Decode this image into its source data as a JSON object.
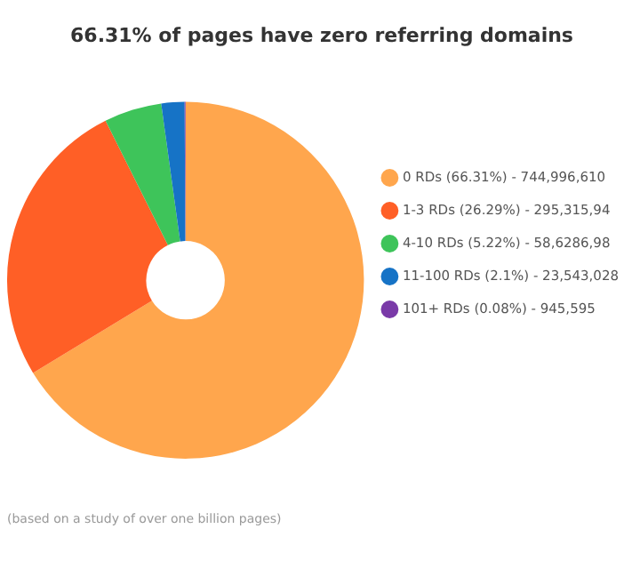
{
  "chart_data": {
    "type": "donut",
    "title": "66.31% of pages have zero referring domains",
    "categories": [
      "0 RDs (66.31%) - 744,996,610",
      "1-3 RDs (26.29%) - 295,315,94",
      "4-10 RDs (5.22%) - 58,6286,98",
      "11-100 RDs (2.1%) - 23,543,028",
      "101+ RDs (0.08%) - 945,595"
    ],
    "values": [
      66.31,
      26.29,
      5.22,
      2.1,
      0.08
    ],
    "colors": [
      "#ffa64d",
      "#ff5f26",
      "#3ec45a",
      "#1673c6",
      "#7a3aa8"
    ],
    "legend": "right",
    "annotations": [
      "(based on a study of over one billion pages)"
    ]
  }
}
